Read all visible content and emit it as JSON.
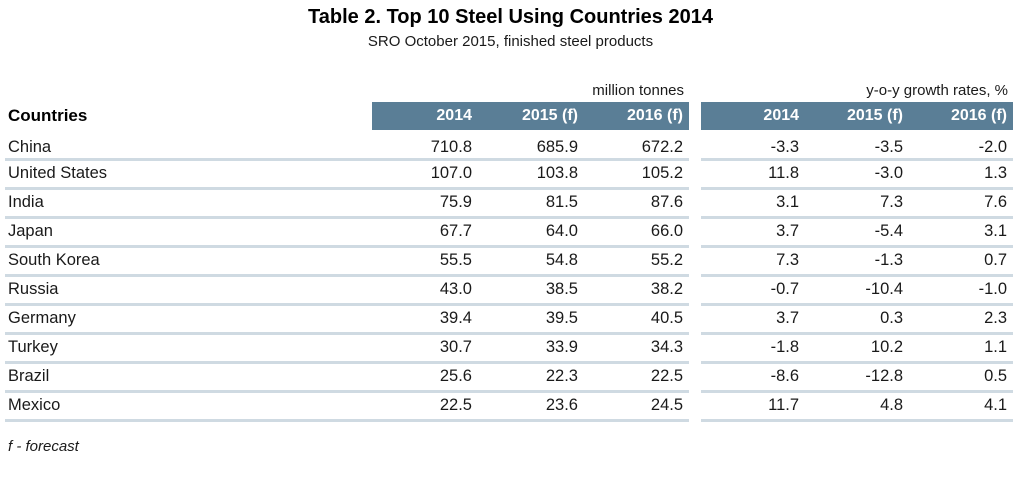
{
  "title": "Table 2. Top 10 Steel Using Countries 2014",
  "subtitle": "SRO October 2015, finished steel products",
  "countries_label": "Countries",
  "units": {
    "tonnes": "million tonnes",
    "growth": "y-o-y growth rates, %"
  },
  "footnote": "f - forecast",
  "colors": {
    "header_bg": "#5a7e96",
    "header_text": "#ffffff",
    "row_separator": "#cfdae2"
  },
  "chart_data": {
    "type": "table",
    "title": "Table 2. Top 10 Steel Using Countries 2014",
    "subtitle": "SRO October 2015, finished steel products",
    "row_header": "Countries",
    "column_groups": [
      {
        "label": "million tonnes",
        "columns": [
          "2014",
          "2015 (f)",
          "2016 (f)"
        ]
      },
      {
        "label": "y-o-y growth rates, %",
        "columns": [
          "2014",
          "2015 (f)",
          "2016 (f)"
        ]
      }
    ],
    "rows": [
      {
        "country": "China",
        "million_tonnes": [
          710.8,
          685.9,
          672.2
        ],
        "yoy_growth_pct": [
          -3.3,
          -3.5,
          -2.0
        ]
      },
      {
        "country": "United States",
        "million_tonnes": [
          107.0,
          103.8,
          105.2
        ],
        "yoy_growth_pct": [
          11.8,
          -3.0,
          1.3
        ]
      },
      {
        "country": "India",
        "million_tonnes": [
          75.9,
          81.5,
          87.6
        ],
        "yoy_growth_pct": [
          3.1,
          7.3,
          7.6
        ]
      },
      {
        "country": "Japan",
        "million_tonnes": [
          67.7,
          64.0,
          66.0
        ],
        "yoy_growth_pct": [
          3.7,
          -5.4,
          3.1
        ]
      },
      {
        "country": "South Korea",
        "million_tonnes": [
          55.5,
          54.8,
          55.2
        ],
        "yoy_growth_pct": [
          7.3,
          -1.3,
          0.7
        ]
      },
      {
        "country": "Russia",
        "million_tonnes": [
          43.0,
          38.5,
          38.2
        ],
        "yoy_growth_pct": [
          -0.7,
          -10.4,
          -1.0
        ]
      },
      {
        "country": "Germany",
        "million_tonnes": [
          39.4,
          39.5,
          40.5
        ],
        "yoy_growth_pct": [
          3.7,
          0.3,
          2.3
        ]
      },
      {
        "country": "Turkey",
        "million_tonnes": [
          30.7,
          33.9,
          34.3
        ],
        "yoy_growth_pct": [
          -1.8,
          10.2,
          1.1
        ]
      },
      {
        "country": "Brazil",
        "million_tonnes": [
          25.6,
          22.3,
          22.5
        ],
        "yoy_growth_pct": [
          -8.6,
          -12.8,
          0.5
        ]
      },
      {
        "country": "Mexico",
        "million_tonnes": [
          22.5,
          23.6,
          24.5
        ],
        "yoy_growth_pct": [
          11.7,
          4.8,
          4.1
        ]
      }
    ],
    "footnote": "f - forecast"
  }
}
